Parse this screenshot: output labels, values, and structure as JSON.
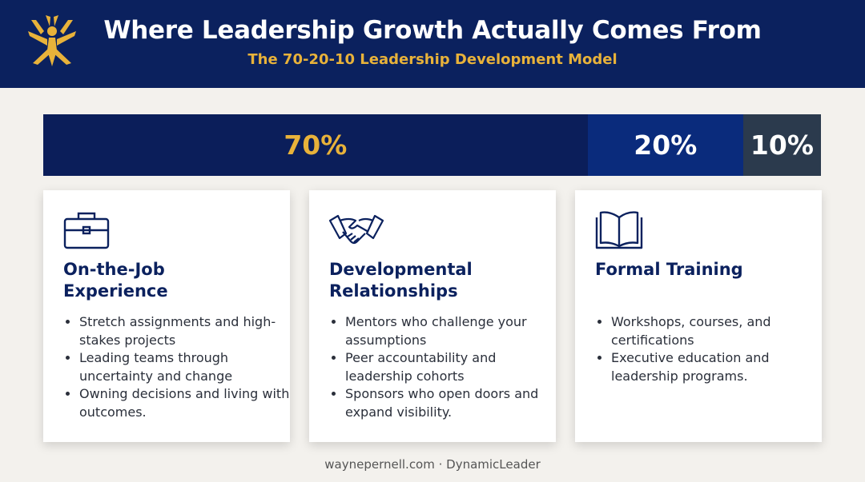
{
  "header": {
    "title": "Where Leadership Growth Actually Comes From",
    "subtitle": "The 70-20-10 Leadership Development Model"
  },
  "bar": {
    "segments": [
      {
        "value": 70,
        "label": "70%",
        "color": "#0b1e5a",
        "text_color": "#e8b23a"
      },
      {
        "value": 20,
        "label": "20%",
        "color": "#0a2b7c",
        "text_color": "#ffffff"
      },
      {
        "value": 10,
        "label": "10%",
        "color": "#2b3a4d",
        "text_color": "#ffffff"
      }
    ]
  },
  "cards": [
    {
      "heading": "On-the-Job Experience",
      "bullets": [
        "Stretch assignments and high-stakes projects",
        "Leading teams through uncertainty and change",
        "Owning decisions and living with outcomes."
      ]
    },
    {
      "heading": "Developmental Relationships",
      "bullets": [
        "Mentors who challenge your assumptions",
        "Peer accountability and leadership cohorts",
        "Sponsors who open doors and expand visibility."
      ]
    },
    {
      "heading": "Formal Training",
      "bullets": [
        "Workshops, courses, and certifications",
        "Executive education and leadership programs."
      ]
    }
  ],
  "footer": "waynepernell.com · DynamicLeader"
}
